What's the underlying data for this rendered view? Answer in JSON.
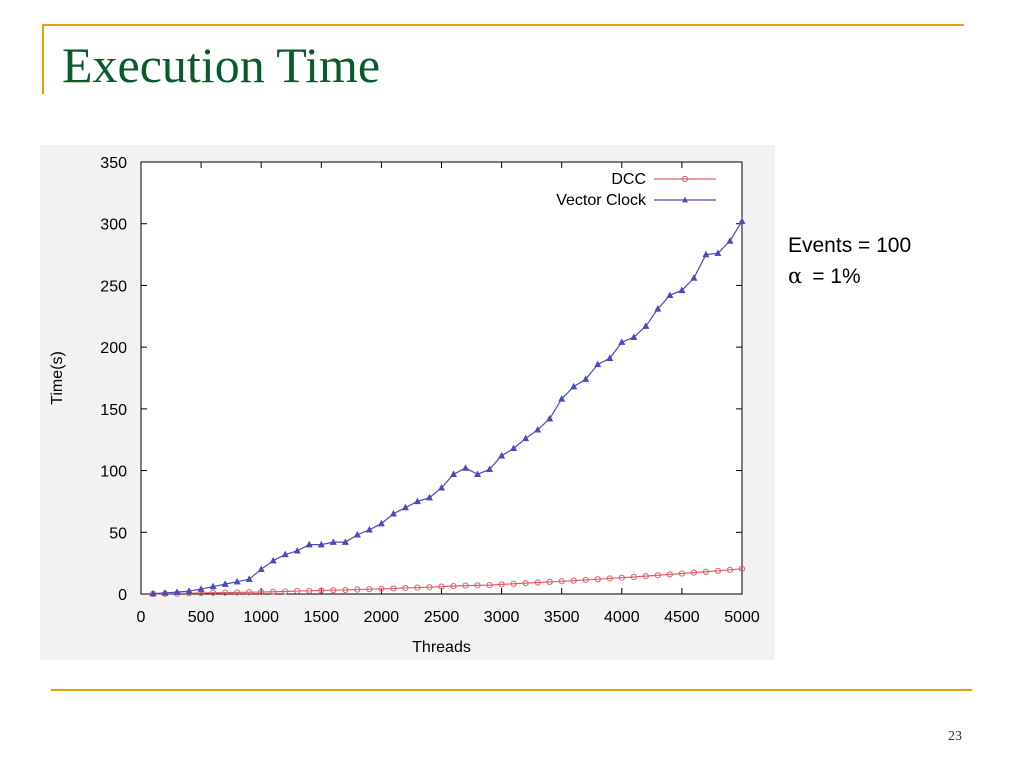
{
  "slide": {
    "title": "Execution Time",
    "page_number": "23"
  },
  "note": {
    "line1": "Events = 100",
    "alpha_symbol": "α",
    "alpha_value": "= 1%"
  },
  "chart_data": {
    "type": "line",
    "title": "",
    "xlabel": "Threads",
    "ylabel": "Time(s)",
    "xlim": [
      0,
      5000
    ],
    "ylim": [
      0,
      350
    ],
    "xticks": [
      0,
      500,
      1000,
      1500,
      2000,
      2500,
      3000,
      3500,
      4000,
      4500,
      5000
    ],
    "yticks": [
      0,
      50,
      100,
      150,
      200,
      250,
      300,
      350
    ],
    "grid": false,
    "legend_position": "top-right",
    "series": [
      {
        "name": "DCC",
        "color": "#e0606a",
        "marker": "circle",
        "points": [
          [
            100,
            0.1
          ],
          [
            200,
            0.3
          ],
          [
            300,
            0.4
          ],
          [
            400,
            0.6
          ],
          [
            500,
            0.8
          ],
          [
            600,
            1.0
          ],
          [
            700,
            1.1
          ],
          [
            800,
            1.3
          ],
          [
            900,
            1.4
          ],
          [
            1000,
            1.6
          ],
          [
            1100,
            1.8
          ],
          [
            1200,
            2.0
          ],
          [
            1300,
            2.4
          ],
          [
            1400,
            2.6
          ],
          [
            1500,
            2.9
          ],
          [
            1600,
            3.1
          ],
          [
            1700,
            3.3
          ],
          [
            1800,
            3.6
          ],
          [
            1900,
            3.9
          ],
          [
            2000,
            4.2
          ],
          [
            2100,
            4.5
          ],
          [
            2200,
            4.9
          ],
          [
            2300,
            5.2
          ],
          [
            2400,
            5.5
          ],
          [
            2500,
            6.0
          ],
          [
            2600,
            6.4
          ],
          [
            2700,
            6.8
          ],
          [
            2800,
            7.0
          ],
          [
            2900,
            7.2
          ],
          [
            3000,
            7.8
          ],
          [
            3100,
            8.3
          ],
          [
            3200,
            8.8
          ],
          [
            3300,
            9.3
          ],
          [
            3400,
            9.8
          ],
          [
            3500,
            10.3
          ],
          [
            3600,
            10.8
          ],
          [
            3700,
            11.4
          ],
          [
            3800,
            12.0
          ],
          [
            3900,
            12.6
          ],
          [
            4000,
            13.2
          ],
          [
            4100,
            13.8
          ],
          [
            4200,
            14.5
          ],
          [
            4300,
            15.2
          ],
          [
            4400,
            15.9
          ],
          [
            4500,
            16.6
          ],
          [
            4600,
            17.3
          ],
          [
            4700,
            18.0
          ],
          [
            4800,
            18.8
          ],
          [
            4900,
            19.6
          ],
          [
            5000,
            20.4
          ]
        ]
      },
      {
        "name": "Vector Clock",
        "color": "#4a4ab8",
        "marker": "triangle",
        "points": [
          [
            100,
            0.3
          ],
          [
            200,
            0.8
          ],
          [
            300,
            1.5
          ],
          [
            400,
            2.4
          ],
          [
            500,
            4.0
          ],
          [
            600,
            6.0
          ],
          [
            700,
            8.0
          ],
          [
            800,
            10.0
          ],
          [
            900,
            12.0
          ],
          [
            1000,
            20.0
          ],
          [
            1100,
            27.0
          ],
          [
            1200,
            32.0
          ],
          [
            1300,
            35.0
          ],
          [
            1400,
            40.0
          ],
          [
            1500,
            40.0
          ],
          [
            1600,
            42.0
          ],
          [
            1700,
            42.0
          ],
          [
            1800,
            48.0
          ],
          [
            1900,
            52.0
          ],
          [
            2000,
            57.0
          ],
          [
            2100,
            65.0
          ],
          [
            2200,
            70.0
          ],
          [
            2300,
            75.0
          ],
          [
            2400,
            78.0
          ],
          [
            2500,
            86.0
          ],
          [
            2600,
            97.0
          ],
          [
            2700,
            102.0
          ],
          [
            2800,
            97.0
          ],
          [
            2900,
            101.0
          ],
          [
            3000,
            112.0
          ],
          [
            3100,
            118.0
          ],
          [
            3200,
            126.0
          ],
          [
            3300,
            133.0
          ],
          [
            3400,
            142.0
          ],
          [
            3500,
            158.0
          ],
          [
            3600,
            168.0
          ],
          [
            3700,
            174.0
          ],
          [
            3800,
            186.0
          ],
          [
            3900,
            191.0
          ],
          [
            4000,
            204.0
          ],
          [
            4100,
            208.0
          ],
          [
            4200,
            217.0
          ],
          [
            4300,
            231.0
          ],
          [
            4400,
            242.0
          ],
          [
            4500,
            246.0
          ],
          [
            4600,
            256.0
          ],
          [
            4700,
            275.0
          ],
          [
            4800,
            276.0
          ],
          [
            4900,
            286.0
          ],
          [
            5000,
            302.0
          ]
        ]
      }
    ]
  }
}
